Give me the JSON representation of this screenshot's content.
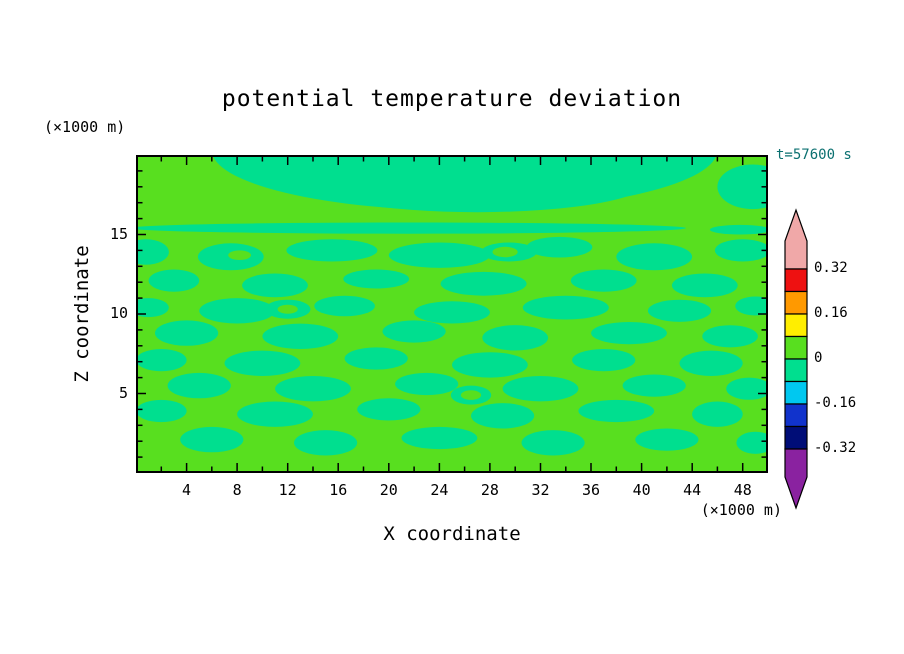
{
  "title": "potential temperature deviation",
  "time_label": "t=57600 s",
  "ylabel": "Z coordinate",
  "xlabel": "X coordinate",
  "y_unit_label": "(×1000 m)",
  "x_unit_label": "(×1000 m)",
  "chart_data": {
    "type": "heatmap",
    "subtype": "filled-contour",
    "title": "potential temperature deviation",
    "xlabel": "X coordinate",
    "ylabel": "Z coordinate",
    "x_unit": "(×1000 m)",
    "z_unit": "(×1000 m)",
    "time_annotation": "t=57600 s",
    "x_range": [
      0,
      50
    ],
    "z_range": [
      0,
      20
    ],
    "x_major_ticks": [
      4,
      8,
      12,
      16,
      20,
      24,
      28,
      32,
      36,
      40,
      44,
      48
    ],
    "x_minor_tick_step": 2,
    "z_major_ticks": [
      5,
      10,
      15
    ],
    "z_minor_tick_step": 1,
    "contour_interval": 0.08,
    "background_band_color": "#58df1f",
    "negative_band_color": "#00df8f",
    "value_bands_visible": [
      {
        "range": [
          0,
          0.08
        ],
        "color": "#58df1f"
      },
      {
        "range": [
          -0.08,
          0
        ],
        "color": "#00df8f"
      }
    ],
    "colorbar": {
      "labels": [
        "0.32",
        "0.16",
        "0",
        "-0.16",
        "-0.32"
      ],
      "label_values": [
        0.32,
        0.16,
        0,
        -0.16,
        -0.32
      ],
      "segments": [
        {
          "range": [
            0.24,
            0.32
          ],
          "color": "#ee1111"
        },
        {
          "range": [
            0.16,
            0.24
          ],
          "color": "#ff9900"
        },
        {
          "range": [
            0.08,
            0.16
          ],
          "color": "#ffee00"
        },
        {
          "range": [
            0.0,
            0.08
          ],
          "color": "#58df1f"
        },
        {
          "range": [
            -0.08,
            0.0
          ],
          "color": "#00df8f"
        },
        {
          "range": [
            -0.16,
            -0.08
          ],
          "color": "#00c8f0"
        },
        {
          "range": [
            -0.24,
            -0.16
          ],
          "color": "#1133cc"
        },
        {
          "range": [
            -0.32,
            -0.24
          ],
          "color": "#000d77"
        }
      ],
      "over_arrow_color": "#f0a8a8",
      "under_arrow_color": "#8a22a0"
    },
    "negative_regions_ellipses_xz": [
      [
        26,
        20.3,
        20,
        3.8
      ],
      [
        27,
        18.3,
        13.5,
        1.9
      ],
      [
        48.8,
        18,
        2.8,
        1.4
      ],
      [
        21.5,
        15.4,
        22,
        0.35
      ],
      [
        47.8,
        15.3,
        2.4,
        0.3
      ],
      [
        0.8,
        13.9,
        1.8,
        0.8
      ],
      [
        7.5,
        13.6,
        2.6,
        0.85
      ],
      [
        15.5,
        14,
        3.6,
        0.7
      ],
      [
        24,
        13.7,
        4,
        0.8
      ],
      [
        29.5,
        13.9,
        2.2,
        0.6
      ],
      [
        33.5,
        14.2,
        2.6,
        0.65
      ],
      [
        41,
        13.6,
        3,
        0.85
      ],
      [
        48,
        14,
        2.2,
        0.7
      ],
      [
        3,
        12.1,
        2,
        0.7
      ],
      [
        11,
        11.8,
        2.6,
        0.75
      ],
      [
        19,
        12.2,
        2.6,
        0.6
      ],
      [
        27.5,
        11.9,
        3.4,
        0.75
      ],
      [
        37,
        12.1,
        2.6,
        0.7
      ],
      [
        45,
        11.8,
        2.6,
        0.75
      ],
      [
        1,
        10.4,
        1.6,
        0.6
      ],
      [
        8,
        10.2,
        3,
        0.8
      ],
      [
        12,
        10.3,
        1.8,
        0.6
      ],
      [
        16.5,
        10.5,
        2.4,
        0.65
      ],
      [
        25,
        10.1,
        3,
        0.7
      ],
      [
        34,
        10.4,
        3.4,
        0.75
      ],
      [
        43,
        10.2,
        2.5,
        0.7
      ],
      [
        49,
        10.5,
        1.6,
        0.6
      ],
      [
        4,
        8.8,
        2.5,
        0.8
      ],
      [
        13,
        8.6,
        3,
        0.8
      ],
      [
        22,
        8.9,
        2.5,
        0.7
      ],
      [
        30,
        8.5,
        2.6,
        0.8
      ],
      [
        39,
        8.8,
        3,
        0.7
      ],
      [
        47,
        8.6,
        2.2,
        0.7
      ],
      [
        2,
        7.1,
        2,
        0.7
      ],
      [
        10,
        6.9,
        3,
        0.8
      ],
      [
        19,
        7.2,
        2.5,
        0.7
      ],
      [
        28,
        6.8,
        3,
        0.8
      ],
      [
        37,
        7.1,
        2.5,
        0.7
      ],
      [
        45.5,
        6.9,
        2.5,
        0.8
      ],
      [
        5,
        5.5,
        2.5,
        0.8
      ],
      [
        14,
        5.3,
        3,
        0.8
      ],
      [
        23,
        5.6,
        2.5,
        0.7
      ],
      [
        26.5,
        4.9,
        1.6,
        0.6
      ],
      [
        32,
        5.3,
        3,
        0.8
      ],
      [
        41,
        5.5,
        2.5,
        0.7
      ],
      [
        48.5,
        5.3,
        1.8,
        0.7
      ],
      [
        2,
        3.9,
        2,
        0.7
      ],
      [
        11,
        3.7,
        3,
        0.8
      ],
      [
        20,
        4,
        2.5,
        0.7
      ],
      [
        29,
        3.6,
        2.5,
        0.8
      ],
      [
        38,
        3.9,
        3,
        0.7
      ],
      [
        46,
        3.7,
        2,
        0.8
      ],
      [
        6,
        2.1,
        2.5,
        0.8
      ],
      [
        15,
        1.9,
        2.5,
        0.8
      ],
      [
        24,
        2.2,
        3,
        0.7
      ],
      [
        33,
        1.9,
        2.5,
        0.8
      ],
      [
        42,
        2.1,
        2.5,
        0.7
      ],
      [
        49,
        1.9,
        1.5,
        0.7
      ]
    ],
    "positive_holes_ellipses_xz": [
      [
        8.2,
        13.7,
        0.9,
        0.3
      ],
      [
        29.2,
        13.9,
        1,
        0.33
      ],
      [
        12,
        10.3,
        0.8,
        0.28
      ],
      [
        26.5,
        4.9,
        0.8,
        0.3
      ]
    ]
  }
}
